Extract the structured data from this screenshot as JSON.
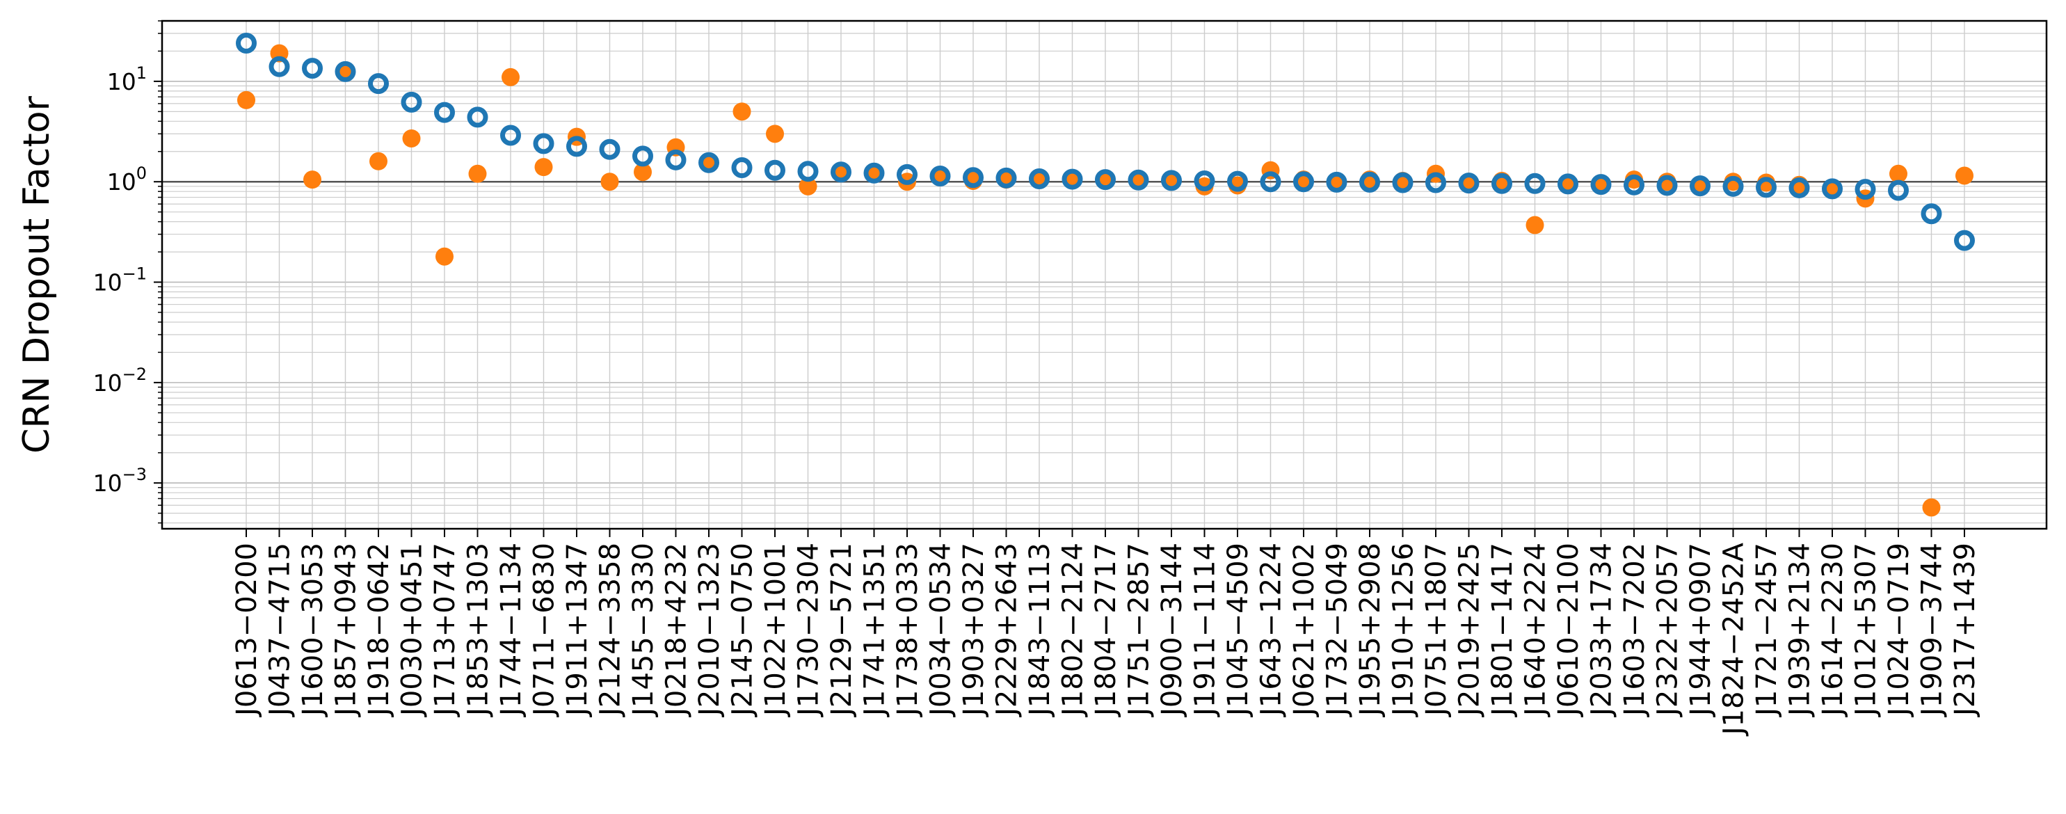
{
  "chart_data": {
    "type": "scatter",
    "ylabel": "CRN Dropout Factor",
    "xlabel": "",
    "yscale": "log",
    "ylim": [
      0.00035,
      40
    ],
    "yticks": [
      {
        "value": 0.001,
        "base": "10",
        "exp": "−3"
      },
      {
        "value": 0.01,
        "base": "10",
        "exp": "−2"
      },
      {
        "value": 0.1,
        "base": "10",
        "exp": "−1"
      },
      {
        "value": 1,
        "base": "10",
        "exp": "0"
      },
      {
        "value": 10,
        "base": "10",
        "exp": "1"
      }
    ],
    "reference_line": 1,
    "grid": true,
    "colors": {
      "series_a": "#1f77b4",
      "series_b": "#ff7f0e",
      "reference": "#555555",
      "grid": "#cccccc"
    },
    "categories": [
      "J0613−0200",
      "J0437−4715",
      "J1600−3053",
      "J1857+0943",
      "J1918−0642",
      "J0030+0451",
      "J1713+0747",
      "J1853+1303",
      "J1744−1134",
      "J0711−6830",
      "J1911+1347",
      "J2124−3358",
      "J1455−3330",
      "J0218+4232",
      "J2010−1323",
      "J2145−0750",
      "J1022+1001",
      "J1730−2304",
      "J2129−5721",
      "J1741+1351",
      "J1738+0333",
      "J0034−0534",
      "J1903+0327",
      "J2229+2643",
      "J1843−1113",
      "J1802−2124",
      "J1804−2717",
      "J1751−2857",
      "J0900−3144",
      "J1911−1114",
      "J1045−4509",
      "J1643−1224",
      "J0621+1002",
      "J1732−5049",
      "J1955+2908",
      "J1910+1256",
      "J0751+1807",
      "J2019+2425",
      "J1801−1417",
      "J1640+2224",
      "J0610−2100",
      "J2033+1734",
      "J1603−7202",
      "J2322+2057",
      "J1944+0907",
      "J1824−2452A",
      "J1721−2457",
      "J1939+2134",
      "J1614−2230",
      "J1012+5307",
      "J1024−0719",
      "J1909−3744",
      "J2317+1439"
    ],
    "series": [
      {
        "marker": "open-circle",
        "values": [
          24,
          14,
          13.5,
          12.5,
          9.5,
          6.2,
          4.9,
          4.4,
          2.9,
          2.4,
          2.25,
          2.1,
          1.8,
          1.65,
          1.55,
          1.38,
          1.3,
          1.27,
          1.25,
          1.22,
          1.18,
          1.14,
          1.1,
          1.09,
          1.07,
          1.06,
          1.05,
          1.04,
          1.03,
          1.02,
          1.01,
          1.0,
          1.0,
          0.99,
          0.99,
          0.98,
          0.98,
          0.97,
          0.96,
          0.96,
          0.95,
          0.94,
          0.93,
          0.92,
          0.91,
          0.9,
          0.88,
          0.87,
          0.85,
          0.84,
          0.82,
          0.48,
          0.26
        ]
      },
      {
        "marker": "filled-circle",
        "values": [
          6.5,
          19,
          1.05,
          12.5,
          1.6,
          2.7,
          0.18,
          1.2,
          11,
          1.4,
          2.8,
          1.0,
          1.25,
          2.2,
          1.55,
          5.0,
          3.0,
          0.9,
          1.27,
          1.22,
          1.0,
          1.12,
          1.02,
          1.05,
          1.05,
          1.05,
          1.02,
          1.02,
          1.0,
          0.9,
          0.92,
          1.3,
          1.05,
          1.0,
          1.05,
          1.02,
          1.2,
          1.0,
          1.02,
          0.37,
          0.93,
          0.93,
          1.05,
          1.0,
          0.93,
          1.0,
          0.98,
          0.93,
          0.87,
          0.68,
          1.2,
          0.00057,
          1.15
        ]
      }
    ]
  }
}
